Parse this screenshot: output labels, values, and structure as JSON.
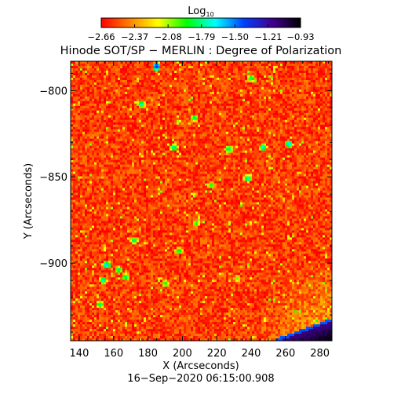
{
  "chart_data": {
    "type": "heatmap",
    "title": "Hinode SOT/SP − MERLIN : Degree of Polarization",
    "xlabel": "X (Arcseconds)",
    "ylabel": "Y (Arcseconds)",
    "timestamp": "16−Sep−2020 06:15:00.908",
    "xlim": [
      135,
      287
    ],
    "ylim": [
      -945,
      -783
    ],
    "x_ticks": [
      140,
      160,
      180,
      200,
      220,
      240,
      260,
      280
    ],
    "x_tick_labels": [
      "140",
      "160",
      "180",
      "200",
      "220",
      "240",
      "260",
      "280"
    ],
    "y_ticks": [
      -800,
      -850,
      -900
    ],
    "y_tick_labels": [
      "−800",
      "−850",
      "−900"
    ],
    "colorbar": {
      "label_main": "Log",
      "label_sub": "10",
      "range": [
        -2.66,
        -0.93
      ],
      "ticks": [
        -2.66,
        -2.37,
        -2.08,
        -1.79,
        -1.5,
        -1.21,
        -0.93
      ],
      "tick_labels": [
        "−2.66",
        "−2.37",
        "−2.08",
        "−1.79",
        "−1.50",
        "−1.21",
        "−0.93"
      ],
      "colors": [
        "#ff0000",
        "#ff8000",
        "#ffff00",
        "#00ff00",
        "#00ffff",
        "#0040ff",
        "#400090",
        "#000000"
      ]
    },
    "background_level": -2.55,
    "features": [
      {
        "x": 185,
        "y": -786,
        "level": -1.35
      },
      {
        "x": 176,
        "y": -808,
        "level": -1.7
      },
      {
        "x": 240,
        "y": -793,
        "level": -1.8
      },
      {
        "x": 207,
        "y": -816,
        "level": -1.8
      },
      {
        "x": 195,
        "y": -833,
        "level": -1.75
      },
      {
        "x": 227,
        "y": -834,
        "level": -1.8
      },
      {
        "x": 247,
        "y": -833,
        "level": -1.7
      },
      {
        "x": 262,
        "y": -831,
        "level": -1.6
      },
      {
        "x": 238,
        "y": -851,
        "level": -1.7
      },
      {
        "x": 217,
        "y": -855,
        "level": -1.9
      },
      {
        "x": 172,
        "y": -887,
        "level": -1.8
      },
      {
        "x": 198,
        "y": -893,
        "level": -1.85
      },
      {
        "x": 163,
        "y": -904,
        "level": -1.8
      },
      {
        "x": 167,
        "y": -908,
        "level": -1.8
      },
      {
        "x": 156,
        "y": -901,
        "level": -1.6
      },
      {
        "x": 154,
        "y": -910,
        "level": -1.7
      },
      {
        "x": 152,
        "y": -924,
        "level": -1.8
      },
      {
        "x": 190,
        "y": -912,
        "level": -1.9
      },
      {
        "x": 208,
        "y": -877,
        "level": -1.9
      },
      {
        "x": 232,
        "y": -909,
        "level": -2.0
      }
    ],
    "limb_region": {
      "x_from": 252,
      "x_to": 287,
      "y_at_right": -932,
      "y_at_left": -945,
      "level": -1.2
    }
  }
}
